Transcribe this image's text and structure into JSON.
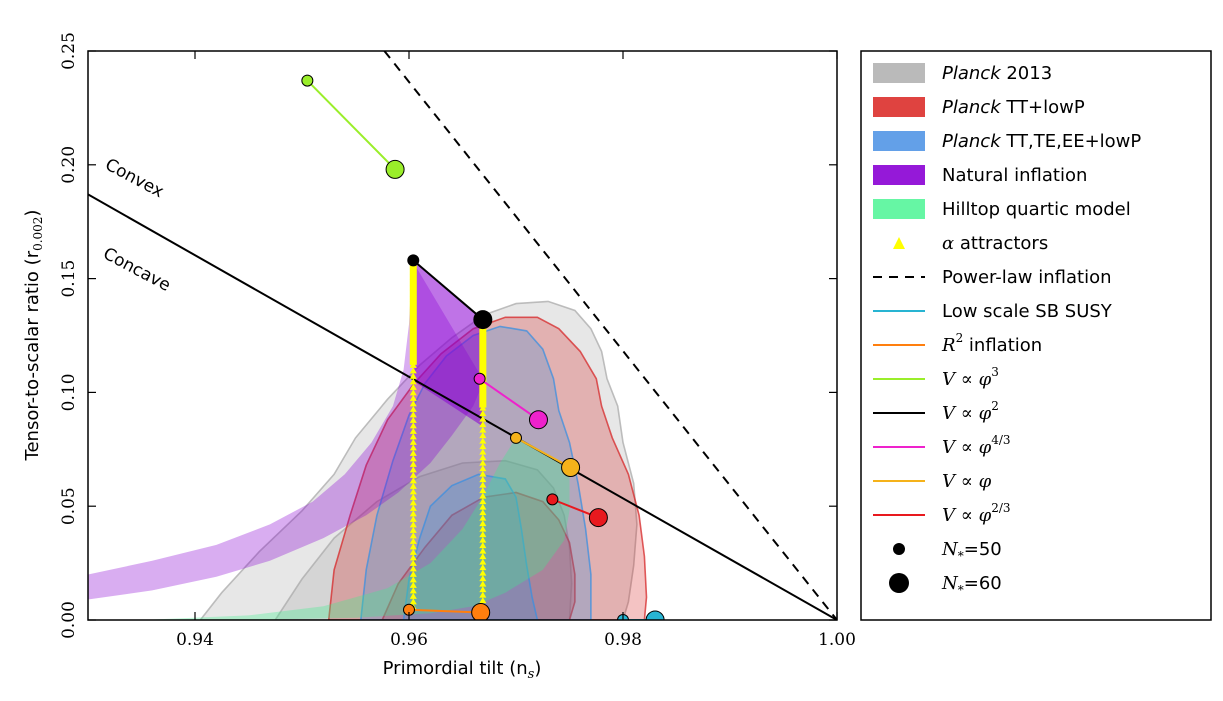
{
  "chart_data": {
    "type": "scatter",
    "xlabel": "Primordial tilt (n",
    "xlabel_sub": "s",
    "xlabel_close": ")",
    "ylabel": "Tensor-to-scalar ratio (r",
    "ylabel_sub": "0.002",
    "ylabel_close": ")",
    "xlim": [
      0.93,
      1.0
    ],
    "ylim": [
      0.0,
      0.25
    ],
    "xticks": [
      {
        "value": 0.94,
        "label": "0.94"
      },
      {
        "value": 0.96,
        "label": "0.96"
      },
      {
        "value": 0.98,
        "label": "0.98"
      },
      {
        "value": 1.0,
        "label": "1.00"
      }
    ],
    "yticks": [
      {
        "value": 0.0,
        "label": "0.00"
      },
      {
        "value": 0.05,
        "label": "0.05"
      },
      {
        "value": 0.1,
        "label": "0.10"
      },
      {
        "value": 0.15,
        "label": "0.15"
      },
      {
        "value": 0.2,
        "label": "0.20"
      },
      {
        "value": 0.25,
        "label": "0.25"
      }
    ],
    "grid": false,
    "legend_position": "outside-right",
    "annotations": [
      {
        "text": "Convex",
        "x": 0.9305,
        "y": 0.2
      },
      {
        "text": "Concave",
        "x": 0.9305,
        "y": 0.16
      }
    ],
    "contours": [
      {
        "name": "Planck 2013",
        "color": "#a9a9a9",
        "levels": [
          {
            "level": "95%",
            "points": [
              [
                0.9405,
                0.0
              ],
              [
                0.9425,
                0.012
              ],
              [
                0.946,
                0.03
              ],
              [
                0.95,
                0.048
              ],
              [
                0.953,
                0.064
              ],
              [
                0.955,
                0.08
              ],
              [
                0.958,
                0.097
              ],
              [
                0.961,
                0.112
              ],
              [
                0.964,
                0.124
              ],
              [
                0.967,
                0.134
              ],
              [
                0.97,
                0.139
              ],
              [
                0.973,
                0.14
              ],
              [
                0.9755,
                0.136
              ],
              [
                0.977,
                0.128
              ],
              [
                0.978,
                0.118
              ],
              [
                0.9785,
                0.106
              ],
              [
                0.9795,
                0.094
              ],
              [
                0.98,
                0.078
              ],
              [
                0.981,
                0.06
              ],
              [
                0.9813,
                0.042
              ],
              [
                0.981,
                0.024
              ],
              [
                0.9805,
                0.008
              ],
              [
                0.98,
                0.0
              ]
            ]
          },
          {
            "level": "68%",
            "points": [
              [
                0.9475,
                0.0
              ],
              [
                0.95,
                0.018
              ],
              [
                0.953,
                0.036
              ],
              [
                0.957,
                0.052
              ],
              [
                0.961,
                0.063
              ],
              [
                0.965,
                0.069
              ],
              [
                0.969,
                0.07
              ],
              [
                0.972,
                0.066
              ],
              [
                0.9735,
                0.058
              ],
              [
                0.9745,
                0.046
              ],
              [
                0.975,
                0.032
              ],
              [
                0.9752,
                0.016
              ],
              [
                0.975,
                0.0
              ]
            ]
          }
        ]
      },
      {
        "name": "Planck TT+lowP",
        "color": "#d62728",
        "levels": [
          {
            "level": "95%",
            "points": [
              [
                0.9525,
                0.0
              ],
              [
                0.953,
                0.022
              ],
              [
                0.9545,
                0.046
              ],
              [
                0.956,
                0.068
              ],
              [
                0.958,
                0.088
              ],
              [
                0.9605,
                0.104
              ],
              [
                0.963,
                0.117
              ],
              [
                0.966,
                0.128
              ],
              [
                0.969,
                0.133
              ],
              [
                0.972,
                0.133
              ],
              [
                0.974,
                0.128
              ],
              [
                0.976,
                0.118
              ],
              [
                0.9775,
                0.106
              ],
              [
                0.978,
                0.094
              ],
              [
                0.979,
                0.08
              ],
              [
                0.9805,
                0.064
              ],
              [
                0.9815,
                0.046
              ],
              [
                0.982,
                0.028
              ],
              [
                0.9822,
                0.01
              ],
              [
                0.982,
                0.0
              ]
            ]
          },
          {
            "level": "68%",
            "points": [
              [
                0.9575,
                0.0
              ],
              [
                0.959,
                0.016
              ],
              [
                0.9615,
                0.032
              ],
              [
                0.964,
                0.046
              ],
              [
                0.967,
                0.054
              ],
              [
                0.97,
                0.056
              ],
              [
                0.9725,
                0.052
              ],
              [
                0.974,
                0.044
              ],
              [
                0.975,
                0.034
              ],
              [
                0.9755,
                0.02
              ],
              [
                0.9755,
                0.008
              ],
              [
                0.975,
                0.0
              ]
            ]
          }
        ]
      },
      {
        "name": "Planck TT,TE,EE+lowP",
        "color": "#3b8fe0",
        "levels": [
          {
            "level": "95%",
            "points": [
              [
                0.9555,
                0.0
              ],
              [
                0.956,
                0.022
              ],
              [
                0.957,
                0.046
              ],
              [
                0.9585,
                0.07
              ],
              [
                0.96,
                0.09
              ],
              [
                0.9615,
                0.104
              ],
              [
                0.9635,
                0.116
              ],
              [
                0.966,
                0.125
              ],
              [
                0.9685,
                0.129
              ],
              [
                0.971,
                0.127
              ],
              [
                0.9725,
                0.119
              ],
              [
                0.9735,
                0.106
              ],
              [
                0.974,
                0.092
              ],
              [
                0.975,
                0.078
              ],
              [
                0.9758,
                0.06
              ],
              [
                0.9765,
                0.04
              ],
              [
                0.977,
                0.02
              ],
              [
                0.977,
                0.0
              ]
            ]
          },
          {
            "level": "68%",
            "points": [
              [
                0.9595,
                0.0
              ],
              [
                0.96,
                0.018
              ],
              [
                0.961,
                0.036
              ],
              [
                0.962,
                0.05
              ],
              [
                0.964,
                0.059
              ],
              [
                0.9665,
                0.064
              ],
              [
                0.969,
                0.062
              ],
              [
                0.97,
                0.054
              ],
              [
                0.9705,
                0.04
              ],
              [
                0.971,
                0.024
              ],
              [
                0.9715,
                0.01
              ],
              [
                0.972,
                0.0
              ]
            ]
          }
        ]
      }
    ],
    "bands": [
      {
        "name": "Natural inflation",
        "color": "#8a00d4",
        "lower": [
          [
            0.93,
            0.009
          ],
          [
            0.936,
            0.013
          ],
          [
            0.942,
            0.019
          ],
          [
            0.947,
            0.026
          ],
          [
            0.952,
            0.036
          ],
          [
            0.956,
            0.046
          ],
          [
            0.959,
            0.056
          ],
          [
            0.962,
            0.069
          ],
          [
            0.964,
            0.081
          ],
          [
            0.966,
            0.094
          ],
          [
            0.967,
            0.105
          ]
        ],
        "upper": [
          [
            0.93,
            0.02
          ],
          [
            0.936,
            0.026
          ],
          [
            0.942,
            0.033
          ],
          [
            0.947,
            0.042
          ],
          [
            0.951,
            0.052
          ],
          [
            0.954,
            0.064
          ],
          [
            0.9565,
            0.078
          ],
          [
            0.9585,
            0.094
          ],
          [
            0.9595,
            0.11
          ],
          [
            0.96,
            0.13
          ],
          [
            0.9603,
            0.158
          ]
        ]
      },
      {
        "name": "Hilltop quartic model",
        "color": "#3cf08c",
        "lower": [
          [
            0.935,
            0.0
          ],
          [
            0.945,
            0.0
          ],
          [
            0.955,
            0.001
          ],
          [
            0.962,
            0.003
          ],
          [
            0.966,
            0.006
          ],
          [
            0.969,
            0.012
          ],
          [
            0.9725,
            0.022
          ],
          [
            0.9745,
            0.035
          ],
          [
            0.975,
            0.048
          ],
          [
            0.975,
            0.067
          ]
        ],
        "upper": [
          [
            0.935,
            0.0
          ],
          [
            0.945,
            0.002
          ],
          [
            0.952,
            0.006
          ],
          [
            0.958,
            0.014
          ],
          [
            0.962,
            0.025
          ],
          [
            0.965,
            0.04
          ],
          [
            0.967,
            0.055
          ],
          [
            0.9685,
            0.069
          ],
          [
            0.97,
            0.08
          ]
        ]
      }
    ],
    "lines": [
      {
        "name": "Power-law inflation",
        "style": "dashed",
        "color": "#000000",
        "points": [
          [
            0.9577,
            0.25
          ],
          [
            1.0,
            0.0
          ]
        ]
      },
      {
        "name": "Convex/Concave divider",
        "style": "solid",
        "color": "#000000",
        "points": [
          [
            0.93,
            0.187
          ],
          [
            1.0,
            0.0
          ]
        ]
      }
    ],
    "alpha_attractors": {
      "name": "α attractors",
      "color": "#ffff00",
      "tracks": [
        {
          "x": 0.9604,
          "y_top": 0.158,
          "y_bottom": 0.005
        },
        {
          "x": 0.9669,
          "y_top": 0.132,
          "y_bottom": 0.003
        }
      ]
    },
    "alpha_region_color": "#8a00d4",
    "series": [
      {
        "name": "Low scale SB SUSY",
        "color": "#28b4d2",
        "points": [
          [
            0.98,
            0.0
          ],
          [
            0.983,
            0.0
          ]
        ]
      },
      {
        "name": "R2 inflation",
        "color": "#ff7f0e",
        "points": [
          [
            0.96,
            0.0045
          ],
          [
            0.9667,
            0.0033
          ]
        ]
      },
      {
        "name": "V ∝ φ^3",
        "color": "#9aee2a",
        "points": [
          [
            0.9505,
            0.237
          ],
          [
            0.9587,
            0.198
          ]
        ]
      },
      {
        "name": "V ∝ φ^2",
        "color": "#000000",
        "points": [
          [
            0.9604,
            0.158
          ],
          [
            0.9669,
            0.132
          ]
        ]
      },
      {
        "name": "V ∝ φ^(4/3)",
        "color": "#ee22cc",
        "points": [
          [
            0.9666,
            0.106
          ],
          [
            0.9721,
            0.088
          ]
        ]
      },
      {
        "name": "V ∝ φ",
        "color": "#f5b21a",
        "points": [
          [
            0.97,
            0.08
          ],
          [
            0.9751,
            0.067
          ]
        ]
      },
      {
        "name": "V ∝ φ^(2/3)",
        "color": "#e8191e",
        "points": [
          [
            0.9734,
            0.053
          ],
          [
            0.9777,
            0.045
          ]
        ]
      }
    ],
    "n_star": [
      {
        "label": "N",
        "sub": "*",
        "value": "=50"
      },
      {
        "label": "N",
        "sub": "*",
        "value": "=60"
      }
    ]
  },
  "legend": [
    {
      "kind": "patch",
      "color": "#b3b3b3",
      "italic": "Planck",
      "rest": " 2013"
    },
    {
      "kind": "patch",
      "color": "#dc2f2b",
      "italic": "Planck",
      "rest": " TT+lowP"
    },
    {
      "kind": "patch",
      "color": "#5296e6",
      "italic": "Planck",
      "rest": " TT,TE,EE+lowP"
    },
    {
      "kind": "patch",
      "color": "#8a00d4",
      "italic": "",
      "rest": "Natural inflation"
    },
    {
      "kind": "patch",
      "color": "#55f59a",
      "italic": "",
      "rest": "Hilltop quartic model"
    },
    {
      "kind": "triangle",
      "color": "#ffff00",
      "italic": "α",
      "rest": " attractors"
    },
    {
      "kind": "dashed",
      "color": "#000000",
      "italic": "",
      "rest": "Power-law inflation"
    },
    {
      "kind": "line",
      "color": "#28b4d2",
      "italic": "",
      "rest": "Low scale SB SUSY"
    },
    {
      "kind": "line",
      "color": "#ff7f0e",
      "italic": "R",
      "sup": "2",
      "rest": " inflation"
    },
    {
      "kind": "line",
      "color": "#9aee2a",
      "italic": "V",
      "rest": " ∝ ",
      "phi": "φ",
      "sup": "3"
    },
    {
      "kind": "line",
      "color": "#000000",
      "italic": "V",
      "rest": " ∝ ",
      "phi": "φ",
      "sup": "2"
    },
    {
      "kind": "line",
      "color": "#ee22cc",
      "italic": "V",
      "rest": " ∝ ",
      "phi": "φ",
      "sup": "4/3"
    },
    {
      "kind": "line",
      "color": "#f5b21a",
      "italic": "V",
      "rest": " ∝ ",
      "phi": "φ",
      "sup": ""
    },
    {
      "kind": "line",
      "color": "#e8191e",
      "italic": "V",
      "rest": " ∝ ",
      "phi": "φ",
      "sup": "2/3"
    },
    {
      "kind": "dot-small",
      "color": "#000000",
      "italic": "N",
      "sub": "*",
      "rest": "=50"
    },
    {
      "kind": "dot-large",
      "color": "#000000",
      "italic": "N",
      "sub": "*",
      "rest": "=60"
    }
  ]
}
